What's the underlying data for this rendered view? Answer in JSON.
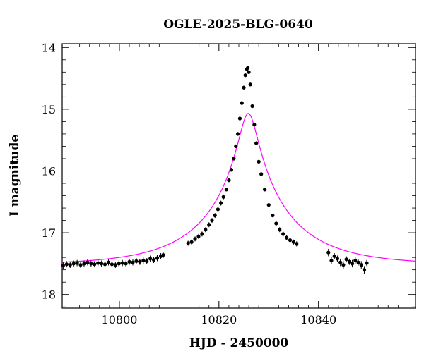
{
  "chart_data": {
    "type": "scatter",
    "title": "OGLE-2025-BLG-0640",
    "xlabel": "HJD - 2450000",
    "ylabel": "I magnitude",
    "xlim": [
      10788.5,
      10859.5
    ],
    "ylim": [
      18.22,
      13.94
    ],
    "y_inverted": true,
    "xticks": [
      10800,
      10820,
      10840
    ],
    "xtick_labels": [
      "10800",
      "10820",
      "10840"
    ],
    "yticks": [
      14,
      15,
      16,
      17,
      18
    ],
    "ytick_labels": [
      "14",
      "15",
      "16",
      "17",
      "18"
    ],
    "grid": false,
    "colors": {
      "points": "#000000",
      "model": "#ff00ff"
    },
    "model": {
      "t0": 10825.9,
      "u0": 0.105,
      "tE": 16.5,
      "Is": 17.52,
      "fs": 1.0
    },
    "series": [
      {
        "type": "scatter",
        "x": [
          10788.7,
          10789.4,
          10790.1,
          10790.8,
          10791.5,
          10792.2,
          10792.9,
          10793.6,
          10794.3,
          10795.0,
          10795.7,
          10796.4,
          10797.1,
          10797.8,
          10798.5,
          10799.2,
          10799.9,
          10800.6,
          10801.3,
          10802.0,
          10802.7,
          10803.4,
          10804.1,
          10804.8,
          10805.5,
          10806.2,
          10806.9,
          10807.6,
          10808.3,
          10808.8,
          10813.8,
          10814.5,
          10815.2,
          10815.9,
          10816.6,
          10817.3,
          10818.0,
          10818.6,
          10819.2,
          10819.8,
          10820.4,
          10820.9,
          10821.5,
          10822.0,
          10822.5,
          10823.0,
          10823.4,
          10823.8,
          10824.2,
          10824.6,
          10825.0,
          10825.3,
          10825.6,
          10825.8,
          10826.0,
          10826.3,
          10826.7,
          10827.1,
          10827.5,
          10828.0,
          10828.5,
          10829.2,
          10830.0,
          10830.8,
          10831.5,
          10832.2,
          10832.9,
          10833.6,
          10834.3,
          10835.0,
          10835.6,
          10842.0,
          10842.6,
          10843.2,
          10843.8,
          10844.4,
          10845.0,
          10845.6,
          10846.2,
          10846.8,
          10847.4,
          10848.0,
          10848.6,
          10849.2,
          10849.7
        ],
        "y": [
          17.53,
          17.51,
          17.52,
          17.5,
          17.49,
          17.52,
          17.5,
          17.48,
          17.5,
          17.51,
          17.49,
          17.5,
          17.51,
          17.48,
          17.51,
          17.52,
          17.5,
          17.49,
          17.5,
          17.47,
          17.48,
          17.46,
          17.47,
          17.45,
          17.46,
          17.42,
          17.44,
          17.41,
          17.38,
          17.36,
          17.17,
          17.15,
          17.1,
          17.06,
          17.02,
          16.95,
          16.87,
          16.8,
          16.72,
          16.62,
          16.52,
          16.42,
          16.3,
          16.15,
          15.98,
          15.8,
          15.6,
          15.4,
          15.15,
          14.9,
          14.65,
          14.45,
          14.35,
          14.33,
          14.4,
          14.6,
          14.95,
          15.25,
          15.55,
          15.85,
          16.05,
          16.3,
          16.55,
          16.72,
          16.85,
          16.95,
          17.02,
          17.08,
          17.12,
          17.15,
          17.18,
          17.32,
          17.45,
          17.38,
          17.42,
          17.48,
          17.52,
          17.43,
          17.47,
          17.5,
          17.45,
          17.48,
          17.52,
          17.6,
          17.49
        ],
        "err": [
          0.06,
          0.05,
          0.05,
          0.05,
          0.05,
          0.05,
          0.05,
          0.05,
          0.05,
          0.05,
          0.05,
          0.05,
          0.05,
          0.05,
          0.05,
          0.05,
          0.05,
          0.05,
          0.05,
          0.05,
          0.05,
          0.05,
          0.05,
          0.05,
          0.05,
          0.05,
          0.05,
          0.05,
          0.05,
          0.05,
          0.04,
          0.04,
          0.04,
          0.04,
          0.04,
          0.04,
          0.04,
          0.04,
          0.04,
          0.04,
          0.04,
          0.04,
          0.03,
          0.03,
          0.03,
          0.03,
          0.03,
          0.03,
          0.03,
          0.03,
          0.03,
          0.03,
          0.03,
          0.03,
          0.03,
          0.03,
          0.03,
          0.03,
          0.03,
          0.03,
          0.03,
          0.03,
          0.03,
          0.03,
          0.04,
          0.04,
          0.04,
          0.04,
          0.04,
          0.04,
          0.04,
          0.06,
          0.06,
          0.05,
          0.05,
          0.06,
          0.06,
          0.05,
          0.05,
          0.06,
          0.05,
          0.05,
          0.06,
          0.06,
          0.05
        ]
      }
    ]
  }
}
